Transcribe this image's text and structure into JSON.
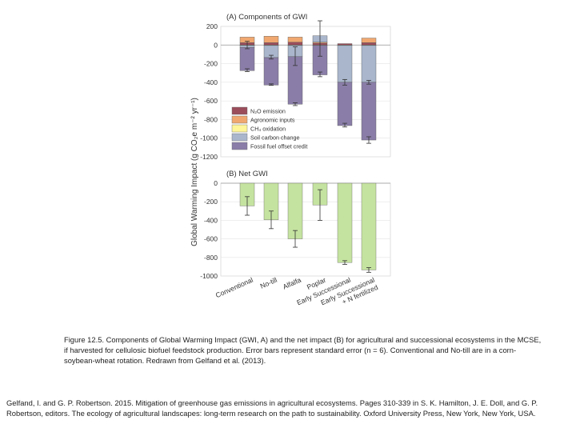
{
  "chart_data": [
    {
      "type": "bar",
      "stacked": true,
      "title": "(A) Components of GWI",
      "ylabel": "Global Warming Impact (g CO₂e m⁻² yr⁻¹)",
      "ylim": [
        -1200,
        200
      ],
      "yticks": [
        200,
        0,
        -200,
        -400,
        -600,
        -800,
        -1000,
        -1200
      ],
      "categories": [
        "Conventional",
        "No-till",
        "Alfalfa",
        "Poplar",
        "Early Successional",
        "Early Successional + N fertilized"
      ],
      "legend_position": "inside-lower-left",
      "series": [
        {
          "name": "N₂O emission",
          "color": "#9b4d5c",
          "values": [
            25,
            25,
            30,
            20,
            15,
            25
          ]
        },
        {
          "name": "Agronomic inputs",
          "color": "#f0a870",
          "values": [
            60,
            70,
            55,
            10,
            0,
            50
          ]
        },
        {
          "name": "CH₄ oxidation",
          "color": "#fff599",
          "values": [
            -5,
            -5,
            -5,
            -5,
            -5,
            -5
          ]
        },
        {
          "name": "Soil carbon change",
          "color": "#a9b6cc",
          "values": [
            -20,
            -130,
            -120,
            70,
            -395,
            -395
          ]
        },
        {
          "name": "Fossil fuel offset credit",
          "color": "#8a7ea8",
          "values": [
            -250,
            -295,
            -510,
            -315,
            -465,
            -620
          ]
        }
      ],
      "error_bars": {
        "upper": [
          {
            "category": 0,
            "value": 0,
            "error": 40
          },
          {
            "category": 1,
            "value": -130,
            "error": 20
          },
          {
            "category": 2,
            "value": -120,
            "error": 100
          },
          {
            "category": 3,
            "value": 70,
            "error": 190
          },
          {
            "category": 4,
            "value": -400,
            "error": 30
          },
          {
            "category": 5,
            "value": -400,
            "error": 20
          }
        ],
        "lower": [
          {
            "category": 0,
            "value": -270,
            "error": 15
          },
          {
            "category": 1,
            "value": -425,
            "error": 8
          },
          {
            "category": 2,
            "value": -635,
            "error": 15
          },
          {
            "category": 3,
            "value": -315,
            "error": 25
          },
          {
            "category": 4,
            "value": -860,
            "error": 20
          },
          {
            "category": 5,
            "value": -1020,
            "error": 35
          }
        ]
      }
    },
    {
      "type": "bar",
      "title": "(B) Net GWI",
      "ylim": [
        -1000,
        0
      ],
      "yticks": [
        0,
        -200,
        -400,
        -600,
        -800,
        -1000
      ],
      "categories": [
        "Conventional",
        "No-till",
        "Alfalfa",
        "Poplar",
        "Early Successional",
        "Early Successional + N fertilized"
      ],
      "color": "#c5e3a0",
      "values": [
        -245,
        -395,
        -600,
        -235,
        -855,
        -935
      ],
      "errors": [
        100,
        95,
        90,
        165,
        20,
        25
      ]
    }
  ],
  "caption": "Figure 12.5. Components of Global Warming Impact (GWI, A) and the net impact (B) for agricultural and successional ecosystems in the MCSE, if harvested for cellulosic biofuel feedstock production. Error bars represent standard error (n = 6). Conventional and No-till are in a corn-soybean-wheat rotation. Redrawn from Gelfand et al. (2013).",
  "reference": "Gelfand, I. and G. P. Robertson. 2015. Mitigation of greenhouse gas emissions in agricultural ecosystems. Pages 310-339 in S. K. Hamilton, J. E. Doll, and G. P. Robertson, editors. The ecology of agricultural landscapes: long-term research on the path to sustainability. Oxford University Press, New York, New York, USA."
}
